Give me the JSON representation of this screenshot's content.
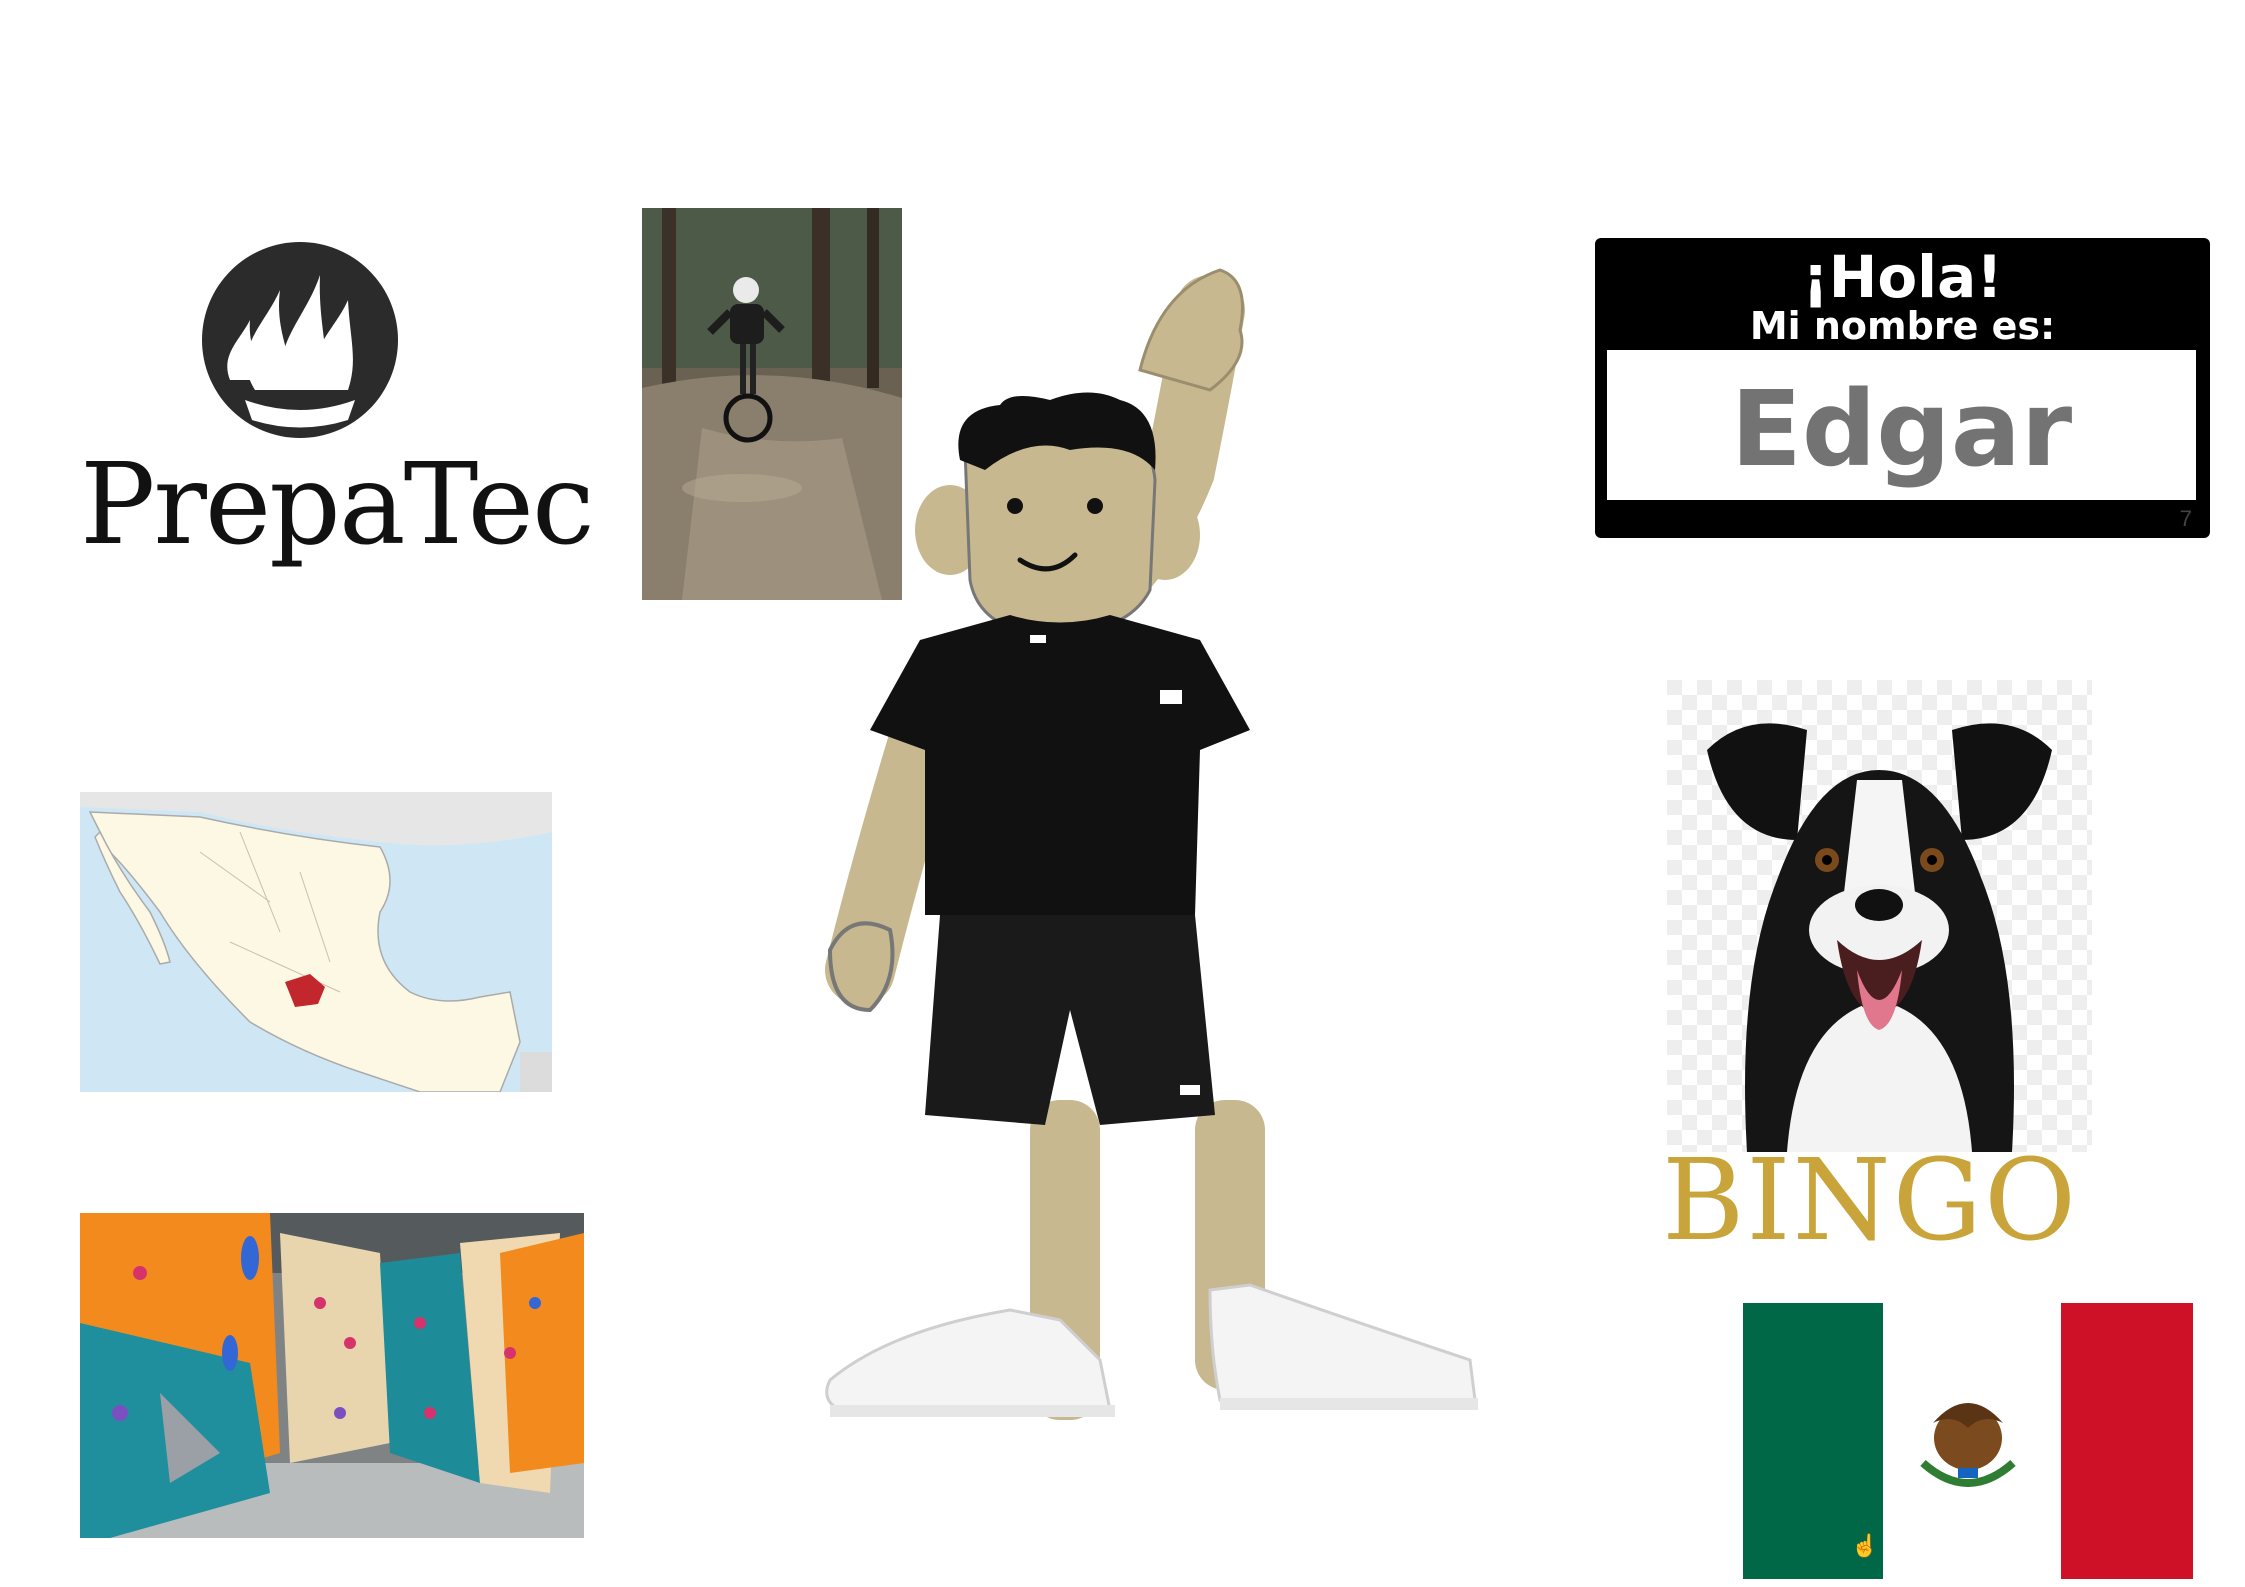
{
  "logo": {
    "wordmark": "PrepaTec"
  },
  "name_tag": {
    "greeting": "¡Hola!",
    "subtitle": "Mi nombre es:",
    "name": "Edgar",
    "corner_number": "7"
  },
  "dog": {
    "caption": "BINGO"
  },
  "colors": {
    "skin": "#c8b88f",
    "shirt": "#111111",
    "bingo_gold": "#c9a43b",
    "flag_green": "#006847",
    "flag_red": "#ce1126",
    "tag_name_gray": "#737373"
  },
  "icons": [
    "torch-flame-icon",
    "mouse-pointer-icon",
    "eagle-emblem-icon"
  ]
}
